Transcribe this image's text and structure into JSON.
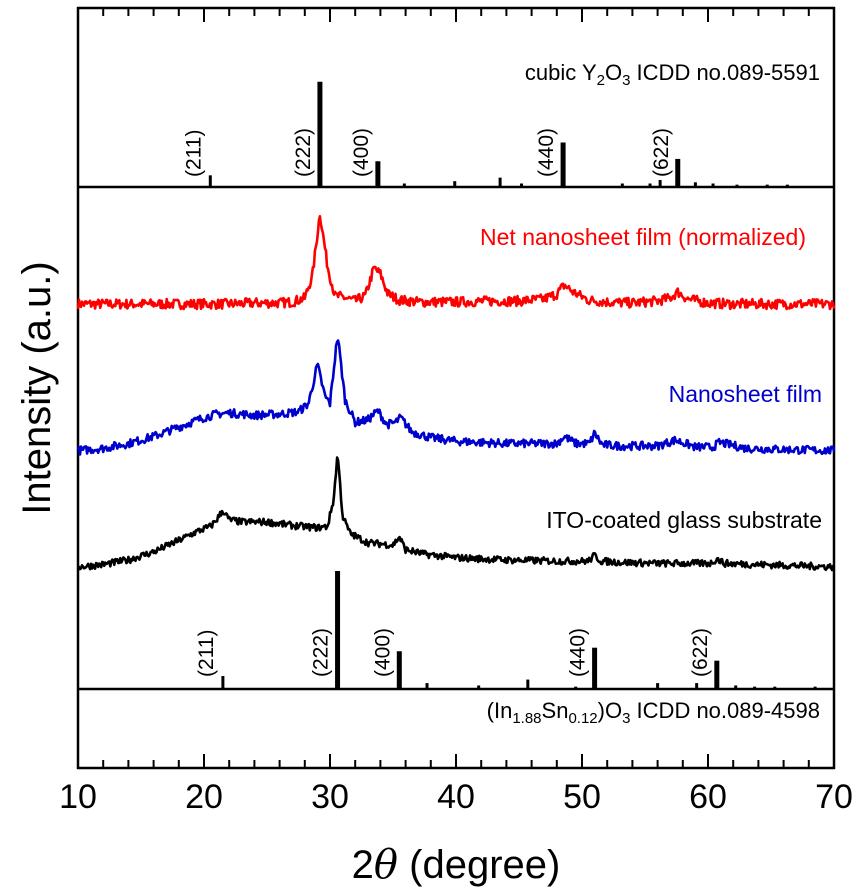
{
  "chart_data": {
    "type": "line",
    "title": "",
    "xlabel_prefix": "2",
    "xlabel_theta": "θ",
    "xlabel_suffix": " (degree)",
    "ylabel": "Intensity (a.u.)",
    "xlim": [
      10,
      70
    ],
    "xticks": [
      "10",
      "20",
      "30",
      "40",
      "50",
      "60",
      "70"
    ],
    "grid": false,
    "legend": "none",
    "top_reference": {
      "label_parts": [
        "cubic Y",
        "2",
        "O",
        "3",
        " ICDD no.089-5591"
      ],
      "color": "#000000",
      "peaks": [
        {
          "x": 20.5,
          "h": 0.1
        },
        {
          "x": 29.2,
          "h": 0.9
        },
        {
          "x": 33.8,
          "h": 0.22
        },
        {
          "x": 35.9,
          "h": 0.03
        },
        {
          "x": 39.9,
          "h": 0.05
        },
        {
          "x": 43.5,
          "h": 0.08
        },
        {
          "x": 45.2,
          "h": 0.03
        },
        {
          "x": 48.5,
          "h": 0.38
        },
        {
          "x": 53.2,
          "h": 0.03
        },
        {
          "x": 55.4,
          "h": 0.03
        },
        {
          "x": 56.2,
          "h": 0.06
        },
        {
          "x": 57.6,
          "h": 0.24
        },
        {
          "x": 59.0,
          "h": 0.04
        },
        {
          "x": 60.4,
          "h": 0.03
        },
        {
          "x": 62.3,
          "h": 0.02
        },
        {
          "x": 64.7,
          "h": 0.02
        },
        {
          "x": 66.3,
          "h": 0.02
        }
      ],
      "hkl": [
        {
          "x": 20.5,
          "label": "(211)"
        },
        {
          "x": 29.2,
          "label": "(222)"
        },
        {
          "x": 33.8,
          "label": "(400)"
        },
        {
          "x": 48.5,
          "label": "(440)"
        },
        {
          "x": 57.6,
          "label": "(622)"
        }
      ]
    },
    "bottom_reference": {
      "label_parts": [
        "(In",
        "1.88",
        "Sn",
        "0.12",
        ")O",
        "3",
        " ICDD no.089-4598"
      ],
      "color": "#000000",
      "peaks": [
        {
          "x": 21.5,
          "h": 0.11
        },
        {
          "x": 30.6,
          "h": 1.0
        },
        {
          "x": 35.5,
          "h": 0.32
        },
        {
          "x": 37.7,
          "h": 0.05
        },
        {
          "x": 41.8,
          "h": 0.03
        },
        {
          "x": 45.7,
          "h": 0.08
        },
        {
          "x": 49.5,
          "h": 0.02
        },
        {
          "x": 51.0,
          "h": 0.35
        },
        {
          "x": 56.0,
          "h": 0.05
        },
        {
          "x": 59.1,
          "h": 0.05
        },
        {
          "x": 60.7,
          "h": 0.24
        },
        {
          "x": 62.2,
          "h": 0.03
        },
        {
          "x": 63.7,
          "h": 0.02
        },
        {
          "x": 65.3,
          "h": 0.02
        },
        {
          "x": 68.5,
          "h": 0.02
        }
      ],
      "hkl": [
        {
          "x": 21.5,
          "label": "(211)"
        },
        {
          "x": 30.6,
          "label": "(222)"
        },
        {
          "x": 35.5,
          "label": "(400)"
        },
        {
          "x": 51.0,
          "label": "(440)"
        },
        {
          "x": 60.7,
          "label": "(622)"
        }
      ]
    },
    "series": [
      {
        "name": "Net nanosheet film (normalized)",
        "color": "#ff0000",
        "x": [
          10,
          12,
          14,
          16,
          18,
          20,
          22,
          24,
          26,
          27,
          28,
          28.6,
          29.2,
          29.8,
          30.4,
          31,
          32,
          32.8,
          33.5,
          34.0,
          34.6,
          35.5,
          37,
          40,
          43,
          45,
          47,
          48.0,
          48.6,
          49.3,
          50.5,
          52,
          54,
          56,
          57.0,
          57.6,
          58.4,
          60,
          62,
          65,
          68,
          70
        ],
        "y": [
          0.02,
          0.02,
          0.02,
          0.02,
          0.02,
          0.02,
          0.02,
          0.03,
          0.03,
          0.04,
          0.08,
          0.3,
          0.93,
          0.4,
          0.1,
          0.09,
          0.05,
          0.1,
          0.38,
          0.32,
          0.12,
          0.06,
          0.04,
          0.04,
          0.05,
          0.05,
          0.07,
          0.12,
          0.21,
          0.14,
          0.06,
          0.04,
          0.03,
          0.05,
          0.08,
          0.14,
          0.07,
          0.03,
          0.02,
          0.02,
          0.02,
          0.02
        ],
        "noise": 0.05
      },
      {
        "name": "Nanosheet film",
        "color": "#0000cc",
        "x": [
          10,
          12,
          14,
          16,
          18,
          20,
          21,
          22,
          24,
          26,
          27.5,
          28.3,
          29.0,
          29.6,
          30.0,
          30.6,
          31.2,
          32,
          33.0,
          33.8,
          34.5,
          35.2,
          35.6,
          36.5,
          38,
          40,
          44,
          48,
          48.6,
          49.5,
          50.6,
          51.0,
          51.6,
          53,
          56,
          57.4,
          59,
          60.4,
          60.9,
          63,
          66,
          70
        ],
        "y": [
          0.02,
          0.04,
          0.08,
          0.14,
          0.22,
          0.3,
          0.33,
          0.34,
          0.32,
          0.33,
          0.35,
          0.42,
          0.75,
          0.48,
          0.42,
          1.0,
          0.45,
          0.26,
          0.28,
          0.36,
          0.24,
          0.26,
          0.3,
          0.18,
          0.13,
          0.1,
          0.08,
          0.08,
          0.14,
          0.08,
          0.08,
          0.17,
          0.07,
          0.06,
          0.06,
          0.11,
          0.05,
          0.05,
          0.09,
          0.04,
          0.03,
          0.02
        ],
        "noise": 0.035
      },
      {
        "name": "ITO-coated glass substrate",
        "color": "#000000",
        "x": [
          10,
          12,
          14,
          16,
          18,
          19.5,
          20.5,
          21.0,
          21.5,
          22.0,
          23,
          25,
          27,
          29,
          29.8,
          30.3,
          30.6,
          31.0,
          31.6,
          33,
          35.0,
          35.5,
          36.0,
          37.5,
          40,
          44,
          48,
          50.5,
          51.0,
          51.5,
          53,
          56,
          60.2,
          60.7,
          61.3,
          64,
          67,
          70
        ],
        "y": [
          0.01,
          0.03,
          0.07,
          0.14,
          0.24,
          0.32,
          0.36,
          0.42,
          0.5,
          0.42,
          0.4,
          0.4,
          0.37,
          0.35,
          0.36,
          0.6,
          1.0,
          0.45,
          0.3,
          0.22,
          0.2,
          0.27,
          0.16,
          0.12,
          0.09,
          0.07,
          0.06,
          0.06,
          0.11,
          0.06,
          0.05,
          0.04,
          0.04,
          0.08,
          0.04,
          0.03,
          0.02,
          0.01
        ],
        "noise": 0.03
      }
    ]
  }
}
